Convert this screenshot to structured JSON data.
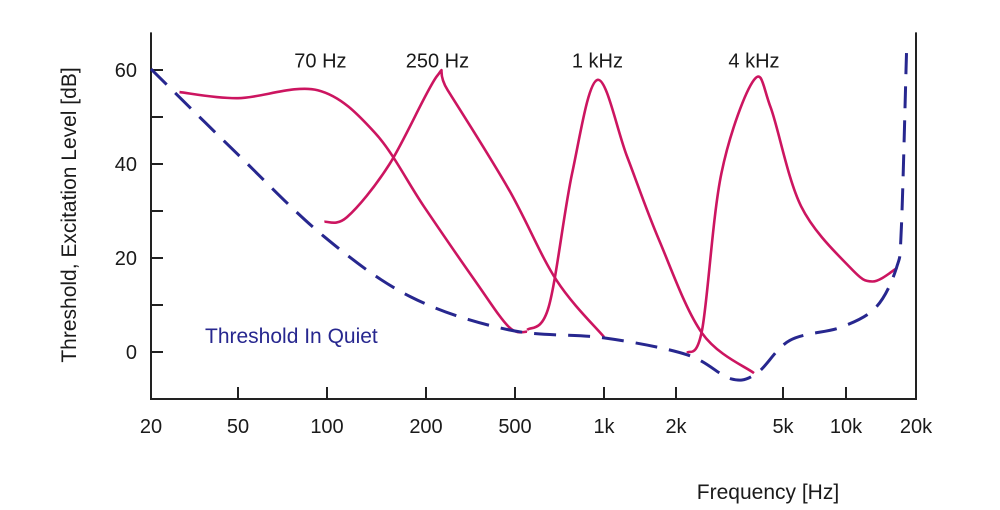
{
  "chart_data": {
    "type": "line",
    "title": "",
    "xlabel": "Frequency [Hz]",
    "ylabel": "Threshold, Excitation Level [dB]",
    "xscale": "log",
    "xlim": [
      20,
      20000
    ],
    "ylim": [
      -10,
      68
    ],
    "grid": false,
    "x_ticks": [
      {
        "value": 20,
        "label": "20"
      },
      {
        "value": 50,
        "label": "50"
      },
      {
        "value": 100,
        "label": "100"
      },
      {
        "value": 200,
        "label": "200"
      },
      {
        "value": 500,
        "label": "500"
      },
      {
        "value": 1000,
        "label": "1k"
      },
      {
        "value": 2000,
        "label": "2k"
      },
      {
        "value": 5000,
        "label": "5k"
      },
      {
        "value": 10000,
        "label": "10k"
      },
      {
        "value": 20000,
        "label": "20k"
      }
    ],
    "y_ticks": [
      {
        "value": 60,
        "label": "60"
      },
      {
        "value": 50,
        "label": ""
      },
      {
        "value": 40,
        "label": "40"
      },
      {
        "value": 30,
        "label": ""
      },
      {
        "value": 20,
        "label": "20"
      },
      {
        "value": 10,
        "label": ""
      },
      {
        "value": 0,
        "label": "0"
      }
    ],
    "colors": {
      "threshold": "#27278f",
      "excitation": "#cc1560",
      "axis": "#222222"
    },
    "threshold": {
      "label": "Threshold In Quiet",
      "style": "dashed",
      "points": [
        [
          20,
          60.2
        ],
        [
          50,
          42
        ],
        [
          98,
          24.5
        ],
        [
          180,
          11.7
        ],
        [
          470,
          4.7
        ],
        [
          1000,
          3
        ],
        [
          2200,
          -0.6
        ],
        [
          3200,
          -5.7
        ],
        [
          4000,
          -4.5
        ],
        [
          5400,
          2.5
        ],
        [
          9500,
          5.3
        ],
        [
          13500,
          9.6
        ],
        [
          16500,
          18
        ],
        [
          17300,
          26.6
        ],
        [
          18200,
          63.6
        ]
      ]
    },
    "series": [
      {
        "name": "70 Hz",
        "label_at": [
          95,
          62
        ],
        "points": [
          [
            27,
            55.3
          ],
          [
            50,
            54
          ],
          [
            93,
            55.7
          ],
          [
            140,
            46.6
          ],
          [
            197,
            31
          ],
          [
            330,
            15.3
          ],
          [
            470,
            5.3
          ],
          [
            550,
            4.3
          ]
        ]
      },
      {
        "name": "250 Hz",
        "label_at": [
          225,
          62
        ],
        "points": [
          [
            98,
            27.7
          ],
          [
            115,
            28.7
          ],
          [
            155,
            40
          ],
          [
            224,
            58.7
          ],
          [
            250,
            55.7
          ],
          [
            470,
            34.5
          ],
          [
            690,
            15.3
          ],
          [
            1000,
            3.2
          ]
        ]
      },
      {
        "name": "1 kHz",
        "label_at": [
          950,
          62
        ],
        "points": [
          [
            550,
            4.7
          ],
          [
            650,
            9.6
          ],
          [
            780,
            38
          ],
          [
            950,
            57.9
          ],
          [
            1250,
            41.5
          ],
          [
            1700,
            23.8
          ],
          [
            2500,
            4
          ],
          [
            3900,
            -4.5
          ]
        ]
      },
      {
        "name": "4 kHz",
        "label_at": [
          3900,
          62
        ],
        "points": [
          [
            2200,
            -0.2
          ],
          [
            2500,
            4.7
          ],
          [
            2950,
            38
          ],
          [
            3900,
            57.9
          ],
          [
            4500,
            52
          ],
          [
            6100,
            31
          ],
          [
            10400,
            18
          ],
          [
            13000,
            15
          ],
          [
            16600,
            17.9
          ]
        ]
      }
    ]
  }
}
